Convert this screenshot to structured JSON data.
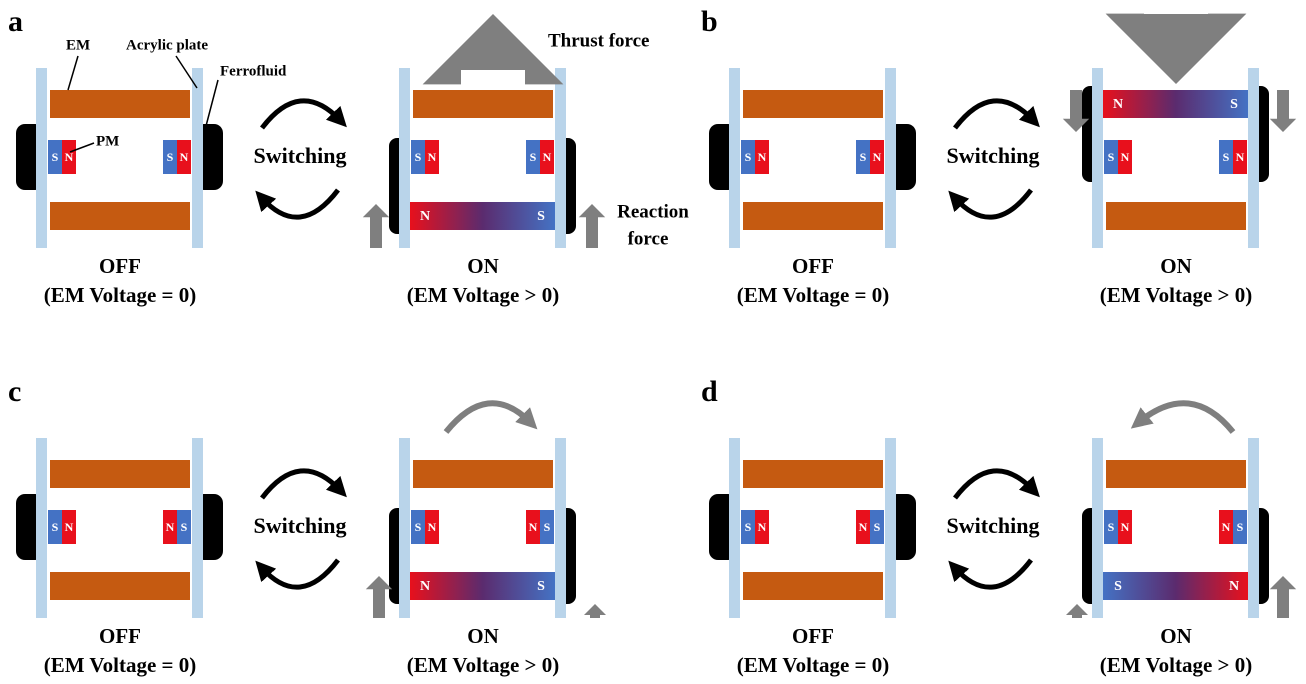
{
  "panels": [
    {
      "label": "a",
      "switching": "Switching",
      "off": {
        "state": "OFF",
        "condition": "(EM Voltage = 0)",
        "magnets": [
          [
            "S",
            "N"
          ],
          [
            "S",
            "N"
          ]
        ]
      },
      "on": {
        "state": "ON",
        "condition": "(EM Voltage > 0)",
        "magnets": [
          [
            "S",
            "N"
          ],
          [
            "S",
            "N"
          ]
        ],
        "em_poles": [
          "N",
          "S"
        ]
      }
    },
    {
      "label": "b",
      "switching": "Switching",
      "off": {
        "state": "OFF",
        "condition": "(EM Voltage = 0)",
        "magnets": [
          [
            "S",
            "N"
          ],
          [
            "S",
            "N"
          ]
        ]
      },
      "on": {
        "state": "ON",
        "condition": "(EM Voltage > 0)",
        "magnets": [
          [
            "S",
            "N"
          ],
          [
            "S",
            "N"
          ]
        ],
        "em_poles": [
          "N",
          "S"
        ]
      }
    },
    {
      "label": "c",
      "switching": "Switching",
      "off": {
        "state": "OFF",
        "condition": "(EM Voltage = 0)",
        "magnets": [
          [
            "S",
            "N"
          ],
          [
            "N",
            "S"
          ]
        ]
      },
      "on": {
        "state": "ON",
        "condition": "(EM Voltage > 0)",
        "magnets": [
          [
            "S",
            "N"
          ],
          [
            "N",
            "S"
          ]
        ],
        "em_poles": [
          "N",
          "S"
        ]
      }
    },
    {
      "label": "d",
      "switching": "Switching",
      "off": {
        "state": "OFF",
        "condition": "(EM Voltage = 0)",
        "magnets": [
          [
            "S",
            "N"
          ],
          [
            "N",
            "S"
          ]
        ]
      },
      "on": {
        "state": "ON",
        "condition": "(EM Voltage > 0)",
        "magnets": [
          [
            "S",
            "N"
          ],
          [
            "N",
            "S"
          ]
        ],
        "em_poles": [
          "S",
          "N"
        ]
      }
    }
  ],
  "annotations": {
    "em": "EM",
    "acrylic_plate": "Acrylic plate",
    "ferrofluid": "Ferrofluid",
    "pm": "PM",
    "thrust_force": "Thrust force",
    "reaction_force": [
      "Reaction",
      "force"
    ]
  }
}
